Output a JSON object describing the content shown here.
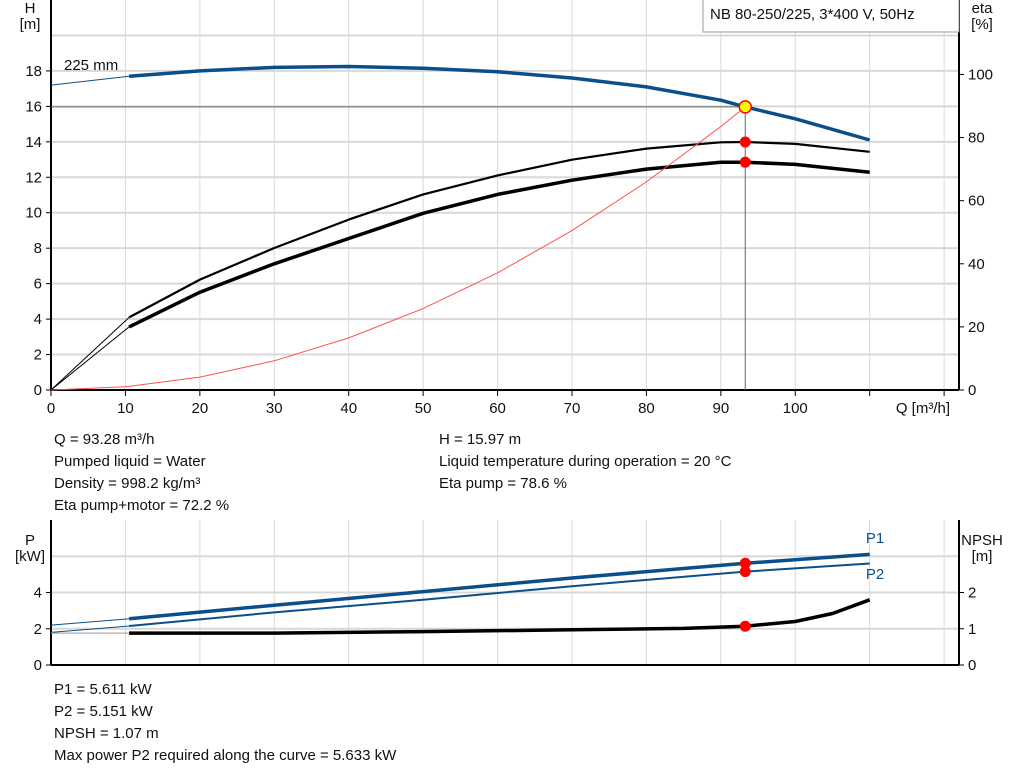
{
  "chart_data": [
    {
      "type": "line",
      "title": "NB 80-250/225, 3*400 V, 50Hz",
      "xlabel": "Q [m³/h]",
      "ylabel_left": [
        "H",
        "[m]"
      ],
      "ylabel_right": [
        "eta",
        "[%]"
      ],
      "xlim": [
        0,
        122
      ],
      "ylim_left": [
        0,
        22
      ],
      "ylim_right": [
        0,
        123.6
      ],
      "x_ticks": [
        0,
        10,
        20,
        30,
        40,
        50,
        60,
        70,
        80,
        90,
        100
      ],
      "y_ticks_left": [
        0,
        2,
        4,
        6,
        8,
        10,
        12,
        14,
        16,
        18
      ],
      "y_ticks_right": [
        0,
        20,
        40,
        60,
        80,
        100
      ],
      "grid": true,
      "curve_label": "225 mm",
      "series": [
        {
          "id": "head",
          "axis": "left",
          "color": "#0b4f8a",
          "x": [
            0,
            10.5,
            20,
            30,
            40,
            50,
            60,
            70,
            80,
            90,
            93.28,
            100,
            110
          ],
          "y": [
            17.2,
            17.7,
            18.0,
            18.2,
            18.25,
            18.15,
            17.95,
            17.6,
            17.1,
            16.35,
            15.97,
            15.3,
            14.1
          ]
        },
        {
          "id": "eta-pump",
          "axis": "right",
          "color": "#000000",
          "x": [
            0,
            10.5,
            20,
            30,
            40,
            50,
            60,
            70,
            80,
            90,
            93.28,
            100,
            110
          ],
          "y": [
            0,
            23,
            35,
            45,
            54,
            62,
            68,
            73,
            76.5,
            78.5,
            78.6,
            78,
            75.5
          ]
        },
        {
          "id": "eta-pump-motor",
          "axis": "right",
          "color": "#000000",
          "x": [
            0,
            10.5,
            20,
            30,
            40,
            50,
            60,
            70,
            80,
            90,
            93.28,
            100,
            110
          ],
          "y": [
            0,
            20,
            31,
            40,
            48,
            56,
            62,
            66.5,
            70,
            72.2,
            72.2,
            71.5,
            69
          ]
        },
        {
          "id": "system-curve",
          "axis": "left",
          "color": "#ff5050",
          "x": [
            0,
            10,
            20,
            30,
            40,
            50,
            60,
            70,
            80,
            90,
            93.28
          ],
          "y": [
            0,
            0.18,
            0.73,
            1.65,
            2.94,
            4.59,
            6.61,
            8.99,
            11.74,
            14.86,
            15.97
          ]
        }
      ],
      "duty_point": {
        "Q": 93.28,
        "H": 15.97,
        "eta_pump": 78.6,
        "eta_pump_motor": 72.2
      }
    },
    {
      "type": "line",
      "xlim": [
        0,
        122
      ],
      "ylabel_left": [
        "P",
        "[kW]"
      ],
      "ylabel_right": [
        "NPSH",
        "[m]"
      ],
      "ylim_left": [
        0,
        8
      ],
      "ylim_right": [
        0,
        4
      ],
      "y_ticks_left": [
        0,
        2,
        4
      ],
      "y_ticks_right": [
        0,
        1,
        2
      ],
      "grid": true,
      "series": [
        {
          "id": "P1",
          "name": "P1",
          "axis": "left",
          "color": "#0b4f8a",
          "x": [
            0,
            10.5,
            30,
            50,
            70,
            93.28,
            110
          ],
          "y": [
            2.2,
            2.55,
            3.3,
            4.05,
            4.8,
            5.611,
            6.1
          ]
        },
        {
          "id": "P2",
          "name": "P2",
          "axis": "left",
          "color": "#0b4f8a",
          "x": [
            0,
            10.5,
            30,
            50,
            70,
            93.28,
            110
          ],
          "y": [
            1.8,
            2.15,
            2.9,
            3.6,
            4.35,
            5.151,
            5.6
          ]
        },
        {
          "id": "NPSH",
          "axis": "right",
          "color": "#000000",
          "x": [
            0,
            10.5,
            30,
            50,
            70,
            85,
            93.28,
            100,
            105,
            110
          ],
          "y": [
            0.88,
            0.88,
            0.88,
            0.92,
            0.97,
            1.01,
            1.07,
            1.2,
            1.42,
            1.8
          ]
        }
      ],
      "duty_point": {
        "Q": 93.28,
        "P1": 5.611,
        "P2": 5.151,
        "NPSH": 1.07
      }
    }
  ],
  "info_top": {
    "left": [
      "Q = 93.28 m³/h",
      "Pumped liquid = Water",
      "Density = 998.2 kg/m³",
      "Eta pump+motor = 72.2 %"
    ],
    "right": [
      "H = 15.97 m",
      "Liquid temperature during operation = 20 °C",
      "Eta pump = 78.6 %"
    ]
  },
  "info_bottom": [
    "P1 = 5.611 kW",
    "P2 = 5.151 kW",
    "NPSH = 1.07 m",
    "Max power P2 required along the curve = 5.633 kW"
  ],
  "colors": {
    "head": "#0b4f8a",
    "duty_marker": "#ff0000",
    "duty_point_fill": "#ffff00",
    "grid": "#d8d8d8"
  }
}
